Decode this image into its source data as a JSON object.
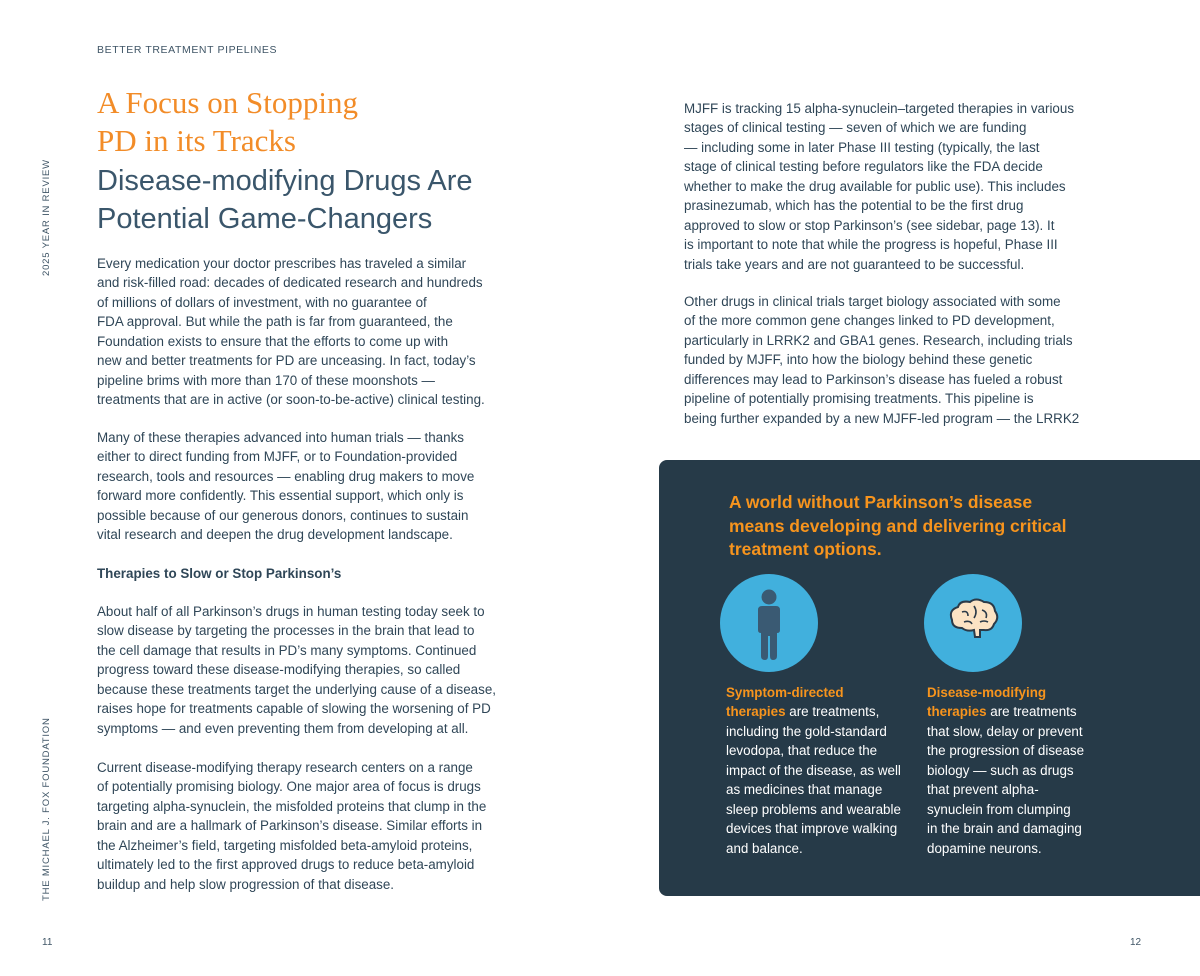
{
  "left_page": {
    "section_label": "BETTER TREATMENT PIPELINES",
    "title_lines": [
      "A Focus on Stopping",
      "PD in its Tracks"
    ],
    "subtitle_lines": [
      "Disease-modifying Drugs Are",
      "Potential Game-Changers"
    ],
    "side_label_top": "2025 YEAR IN REVIEW",
    "side_label_bottom": "THE MICHAEL J. FOX FOUNDATION",
    "page_number": "11",
    "paragraph_1": [
      "Every medication your doctor prescribes has traveled a similar",
      "and risk-filled road: decades of dedicated research and hundreds",
      "of millions of dollars of investment, with no guarantee of",
      "FDA approval. But while the path is far from guaranteed, the",
      "Foundation exists to ensure that the efforts to come up with",
      "new and better treatments for PD are unceasing. In fact, today’s",
      "pipeline brims with more than 170 of these moonshots —",
      "treatments that are in active (or soon-to-be-active) clinical testing."
    ],
    "paragraph_2": [
      "Many of these therapies advanced into human trials — thanks",
      "either to direct funding from MJFF, or to Foundation-provided",
      "research, tools and resources — enabling drug makers to move",
      "forward more confidently. This essential support, which only is",
      "possible because of our generous donors, continues to sustain",
      "vital research and deepen the drug development landscape."
    ],
    "subheading": "Therapies to Slow or Stop Parkinson’s",
    "paragraph_3": [
      "About half of all Parkinson’s drugs in human testing today seek to",
      "slow disease by targeting the processes in the brain that lead to",
      "the cell damage that results in PD’s many symptoms. Continued",
      "progress toward these disease-modifying therapies, so called",
      "because these treatments target the underlying cause of a disease,",
      "raises hope for treatments capable of slowing the worsening of PD",
      "symptoms — and even preventing them from developing at all."
    ],
    "paragraph_4": [
      "Current disease-modifying therapy research centers on a range",
      "of potentially promising biology. One major area of focus is drugs",
      "targeting alpha-synuclein, the misfolded proteins that clump in the",
      "brain and are a hallmark of Parkinson’s disease. Similar efforts in",
      "the Alzheimer’s field, targeting misfolded beta-amyloid proteins,",
      "ultimately led to the first approved drugs to reduce beta-amyloid",
      "buildup and help slow progression of that disease."
    ]
  },
  "right_page": {
    "page_number": "12",
    "paragraph_1": [
      "MJFF is tracking 15 alpha-synuclein–targeted therapies in various",
      "stages of clinical testing — seven of which we are funding",
      "— including some in later Phase III testing (typically, the last",
      "stage of clinical testing before regulators like the FDA decide",
      "whether to make the drug available for public use). This includes",
      "prasinezumab, which has the potential to be the first drug",
      "approved to slow or stop Parkinson’s (see sidebar, page 13). It",
      "is important to note that while the progress is hopeful, Phase III",
      "trials take years and are not guaranteed to be successful."
    ],
    "paragraph_2": [
      "Other drugs in clinical trials target biology associated with some",
      "of the more common gene changes linked to PD development,",
      "particularly in LRRK2 and GBA1 genes. Research, including trials",
      "funded by MJFF, into how the biology behind these genetic",
      "differences may lead to Parkinson’s disease has fueled a robust",
      "pipeline of potentially promising treatments. This pipeline is",
      "being further expanded by a new MJFF-led program — the LRRK2"
    ],
    "callout": {
      "heading_lines": [
        "A world without Parkinson’s disease",
        "means developing and delivering critical",
        "treatment options."
      ],
      "items": [
        {
          "icon": "person-icon",
          "highlight_lines": [
            "Symptom-directed",
            "therapies"
          ],
          "lines": [
            " are treatments,",
            "including the gold-standard",
            "levodopa, that reduce the",
            "impact of the disease, as well",
            "as medicines that manage",
            "sleep problems and wearable",
            "devices that improve walking",
            "and balance."
          ]
        },
        {
          "icon": "brain-icon",
          "highlight_lines": [
            "Disease-modifying",
            "therapies"
          ],
          "lines": [
            " are treatments",
            "that slow, delay or prevent",
            "the progression of disease",
            "biology — such as drugs",
            "that prevent alpha-",
            "synuclein from clumping",
            "in the brain and damaging",
            "dopamine neurons."
          ]
        }
      ],
      "colors": {
        "background": "#263a48",
        "accent": "#f7941d",
        "circle": "#41b0dd"
      }
    }
  }
}
